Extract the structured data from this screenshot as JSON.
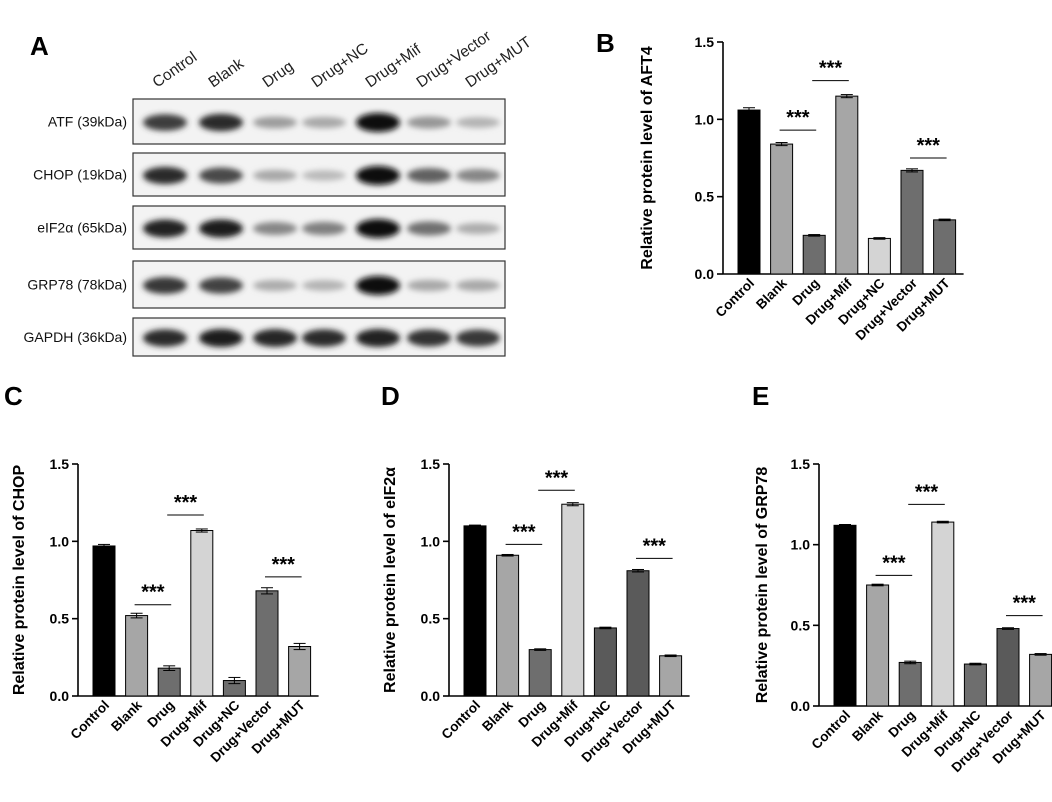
{
  "western_blot": {
    "panel_label": "A",
    "lanes": [
      "Control",
      "Blank",
      "Drug",
      "Drug+NC",
      "Drug+Mif",
      "Drug+Vector",
      "Drug+MUT"
    ],
    "rows": [
      {
        "label": "ATF (39kDa)",
        "intensities": [
          0.78,
          0.85,
          0.35,
          0.3,
          1.0,
          0.38,
          0.25
        ]
      },
      {
        "label": "CHOP (19kDa)",
        "intensities": [
          0.85,
          0.72,
          0.3,
          0.22,
          1.0,
          0.62,
          0.45
        ]
      },
      {
        "label": "eIF2α (65kDa)",
        "intensities": [
          0.9,
          0.92,
          0.45,
          0.48,
          1.0,
          0.55,
          0.28
        ]
      },
      {
        "label": "GRP78 (78kDa)",
        "intensities": [
          0.8,
          0.75,
          0.28,
          0.25,
          1.0,
          0.3,
          0.3
        ]
      },
      {
        "label": "GAPDH (36kDa)",
        "intensities": [
          0.85,
          0.92,
          0.88,
          0.85,
          0.9,
          0.82,
          0.8
        ]
      }
    ]
  },
  "chart_data": [
    {
      "panel": "B",
      "type": "bar",
      "ylabel": "Relative protein level of AFT4",
      "categories": [
        "Control",
        "Blank",
        "Drug",
        "Drug+Mif",
        "Drug+NC",
        "Drug+Vector",
        "Drug+MUT"
      ],
      "values": [
        1.06,
        0.84,
        0.25,
        1.15,
        0.23,
        0.67,
        0.35
      ],
      "errors": [
        0.015,
        0.01,
        0.005,
        0.01,
        0.005,
        0.01,
        0.005
      ],
      "colors": [
        "#000000",
        "#a6a6a6",
        "#6e6e6e",
        "#a6a6a6",
        "#d4d4d4",
        "#6e6e6e",
        "#6e6e6e"
      ],
      "ylim": [
        0,
        1.5
      ],
      "yticks": [
        "0.0",
        "0.5",
        "1.0",
        "1.5"
      ],
      "significance": [
        {
          "from": 1,
          "to": 2,
          "y": 0.93,
          "label": "***"
        },
        {
          "from": 2,
          "to": 3,
          "y": 1.25,
          "label": "***"
        },
        {
          "from": 5,
          "to": 6,
          "y": 0.75,
          "label": "***"
        }
      ]
    },
    {
      "panel": "C",
      "type": "bar",
      "ylabel": "Relative protein level of CHOP",
      "categories": [
        "Control",
        "Blank",
        "Drug",
        "Drug+Mif",
        "Drug+NC",
        "Drug+Vector",
        "Drug+MUT"
      ],
      "values": [
        0.97,
        0.52,
        0.18,
        1.07,
        0.1,
        0.68,
        0.32
      ],
      "errors": [
        0.01,
        0.015,
        0.015,
        0.01,
        0.02,
        0.02,
        0.02
      ],
      "colors": [
        "#000000",
        "#a6a6a6",
        "#6e6e6e",
        "#d4d4d4",
        "#6e6e6e",
        "#6e6e6e",
        "#a6a6a6"
      ],
      "ylim": [
        0,
        1.5
      ],
      "yticks": [
        "0.0",
        "0.5",
        "1.0",
        "1.5"
      ],
      "significance": [
        {
          "from": 1,
          "to": 2,
          "y": 0.59,
          "label": "***"
        },
        {
          "from": 2,
          "to": 3,
          "y": 1.17,
          "label": "***"
        },
        {
          "from": 5,
          "to": 6,
          "y": 0.77,
          "label": "***"
        }
      ]
    },
    {
      "panel": "D",
      "type": "bar",
      "ylabel": "Relative protein level of eIF2α",
      "categories": [
        "Control",
        "Blank",
        "Drug",
        "Drug+Mif",
        "Drug+NC",
        "Drug+Vector",
        "Drug+MUT"
      ],
      "values": [
        1.1,
        0.91,
        0.3,
        1.24,
        0.44,
        0.81,
        0.26
      ],
      "errors": [
        0.005,
        0.005,
        0.005,
        0.01,
        0.005,
        0.008,
        0.005
      ],
      "colors": [
        "#000000",
        "#a6a6a6",
        "#6e6e6e",
        "#d4d4d4",
        "#5a5a5a",
        "#5a5a5a",
        "#a6a6a6"
      ],
      "ylim": [
        0,
        1.5
      ],
      "yticks": [
        "0.0",
        "0.5",
        "1.0",
        "1.5"
      ],
      "significance": [
        {
          "from": 1,
          "to": 2,
          "y": 0.98,
          "label": "***"
        },
        {
          "from": 2,
          "to": 3,
          "y": 1.33,
          "label": "***"
        },
        {
          "from": 5,
          "to": 6,
          "y": 0.89,
          "label": "***"
        }
      ]
    },
    {
      "panel": "E",
      "type": "bar",
      "ylabel": "Relative protein level of GRP78",
      "categories": [
        "Control",
        "Blank",
        "Drug",
        "Drug+Mif",
        "Drug+NC",
        "Drug+Vector",
        "Drug+MUT"
      ],
      "values": [
        1.12,
        0.75,
        0.27,
        1.14,
        0.26,
        0.48,
        0.32
      ],
      "errors": [
        0.005,
        0.005,
        0.008,
        0.005,
        0.005,
        0.005,
        0.005
      ],
      "colors": [
        "#000000",
        "#a6a6a6",
        "#6e6e6e",
        "#d4d4d4",
        "#6e6e6e",
        "#5a5a5a",
        "#a6a6a6"
      ],
      "ylim": [
        0,
        1.5
      ],
      "yticks": [
        "0.0",
        "0.5",
        "1.0",
        "1.5"
      ],
      "significance": [
        {
          "from": 1,
          "to": 2,
          "y": 0.81,
          "label": "***"
        },
        {
          "from": 2,
          "to": 3,
          "y": 1.25,
          "label": "***"
        },
        {
          "from": 5,
          "to": 6,
          "y": 0.56,
          "label": "***"
        }
      ]
    }
  ]
}
